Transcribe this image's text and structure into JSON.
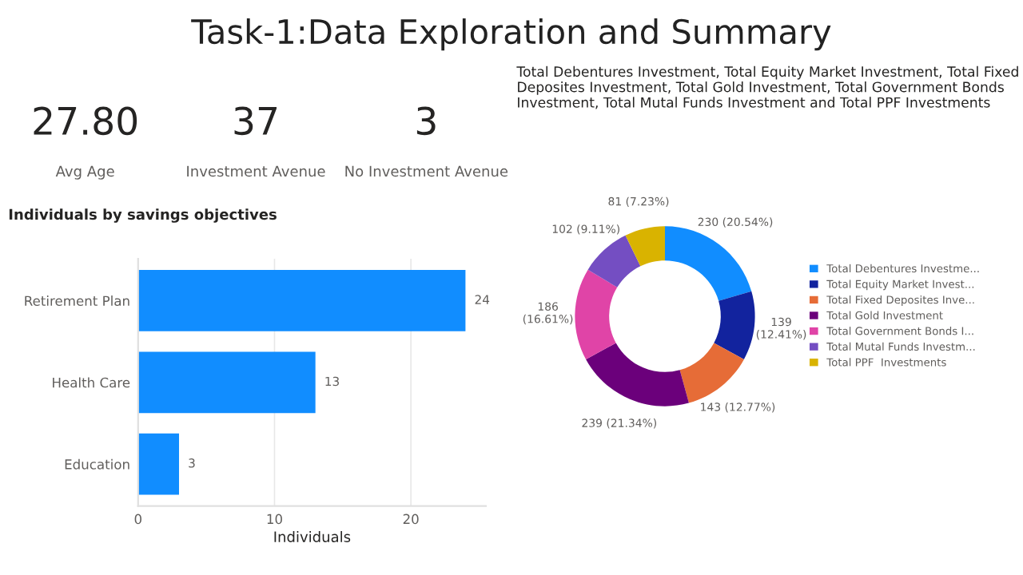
{
  "chart_data": [
    {
      "type": "other",
      "title": "Task-1:Data Exploration and Summary",
      "annotations": [
        "27.80",
        "Avg Age",
        "37",
        "Investment Avenue",
        "3",
        "No Investment Avenue"
      ]
    },
    {
      "type": "bar",
      "orientation": "horizontal",
      "title": "Individuals by savings objectives",
      "xlabel": "Individuals",
      "categories": [
        "Retirement Plan",
        "Health Care",
        "Education"
      ],
      "values": [
        24,
        13,
        3
      ],
      "color": "#118dff",
      "xlim": [
        0,
        25.5
      ],
      "xticks": [
        0,
        10,
        20
      ],
      "data_labels": true,
      "grid": "x"
    },
    {
      "type": "donut",
      "title": "Total Debentures Investment, Total Equity Market Investment, Total Fixed Deposites Investment, Total Gold Investment, Total Government Bonds Investment, Total Mutal Funds Investment and Total PPF Investments",
      "categories": [
        "Total Debentures Investme...",
        "Total Equity Market Invest...",
        "Total Fixed Deposites Inve...",
        "Total Gold Investment",
        "Total Government Bonds I...",
        "Total Mutal Funds Investm...",
        "Total PPF  Investments"
      ],
      "values": [
        230,
        139,
        143,
        239,
        186,
        102,
        81
      ],
      "value_labels": [
        "230 (20.54%)",
        "139\n(12.41%)",
        "143 (12.77%)",
        "239 (21.34%)",
        "186\n(16.61%)",
        "102 (9.11%)",
        "81 (7.23%)"
      ],
      "colors": [
        "#118dff",
        "#12239e",
        "#e66c37",
        "#6b007b",
        "#e044a7",
        "#744ec2",
        "#d9b300"
      ],
      "legend": "right"
    }
  ]
}
